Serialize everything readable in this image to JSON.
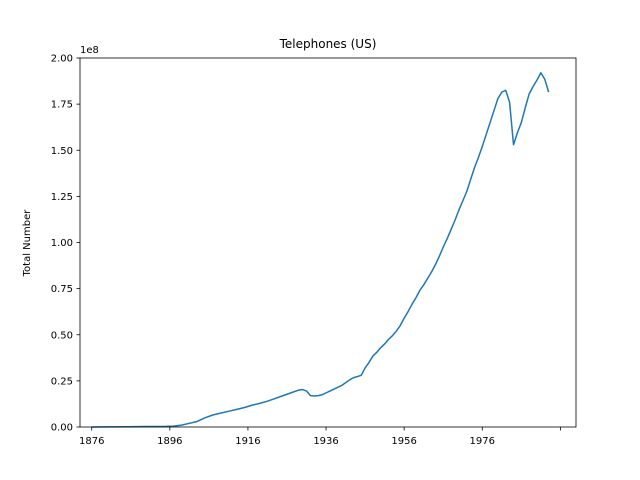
{
  "chart_data": {
    "type": "line",
    "title": "Telephones (US)",
    "xlabel": "",
    "ylabel": "Total Number",
    "y_offset_label": "1e8",
    "xlim": [
      1873,
      2000
    ],
    "ylim": [
      0,
      200000000
    ],
    "x_ticks": [
      1876,
      1896,
      1916,
      1936,
      1956,
      1976,
      1996
    ],
    "x_tick_labels": [
      "1876",
      "1896",
      "1916",
      "1936",
      "1956",
      "1976",
      ""
    ],
    "y_ticks": [
      0,
      25000000,
      50000000,
      75000000,
      100000000,
      125000000,
      150000000,
      175000000,
      200000000
    ],
    "y_tick_labels": [
      "0.00",
      "0.25",
      "0.50",
      "0.75",
      "1.00",
      "1.25",
      "1.50",
      "1.75",
      "2.00"
    ],
    "line_color": "#1f77b4",
    "grid": false,
    "series": [
      {
        "x": [
          1876,
          1880,
          1885,
          1890,
          1895,
          1897,
          1899,
          1901,
          1903,
          1905,
          1907,
          1909,
          1911,
          1913,
          1915,
          1917,
          1919,
          1921,
          1923,
          1925,
          1927,
          1929,
          1930,
          1931,
          1932,
          1933,
          1934,
          1935,
          1936,
          1937,
          1938,
          1939,
          1940,
          1941,
          1942,
          1943,
          1944,
          1945,
          1946,
          1947,
          1948,
          1949,
          1950,
          1951,
          1952,
          1953,
          1954,
          1955,
          1956,
          1957,
          1958,
          1959,
          1960,
          1961,
          1962,
          1963,
          1964,
          1965,
          1966,
          1967,
          1968,
          1969,
          1970,
          1971,
          1972,
          1973,
          1974,
          1975,
          1976,
          1977,
          1978,
          1979,
          1980,
          1981,
          1982,
          1983,
          1984,
          1985,
          1986,
          1987,
          1988,
          1989,
          1990,
          1991,
          1992,
          1993
        ],
        "values": [
          3000,
          50000,
          150000,
          250000,
          350000,
          500000,
          1000000,
          2000000,
          3000000,
          5000000,
          6500000,
          7500000,
          8500000,
          9500000,
          10500000,
          11800000,
          12800000,
          14000000,
          15500000,
          17000000,
          18500000,
          20000000,
          20300000,
          19500000,
          17000000,
          16800000,
          17000000,
          17500000,
          18500000,
          19500000,
          20500000,
          21500000,
          22500000,
          24000000,
          25500000,
          26700000,
          27300000,
          28000000,
          32000000,
          35000000,
          38500000,
          40500000,
          43000000,
          45000000,
          47500000,
          49500000,
          52000000,
          55000000,
          59000000,
          62500000,
          66500000,
          70000000,
          74000000,
          77000000,
          80500000,
          84000000,
          88000000,
          92500000,
          97500000,
          102000000,
          107000000,
          112000000,
          117500000,
          122500000,
          127500000,
          134000000,
          140500000,
          146000000,
          152000000,
          158500000,
          165000000,
          171500000,
          178000000,
          181500000,
          182500000,
          176000000,
          153000000,
          159500000,
          165000000,
          173000000,
          180500000,
          184500000,
          188000000,
          192000000,
          188500000,
          181500000
        ]
      }
    ]
  }
}
